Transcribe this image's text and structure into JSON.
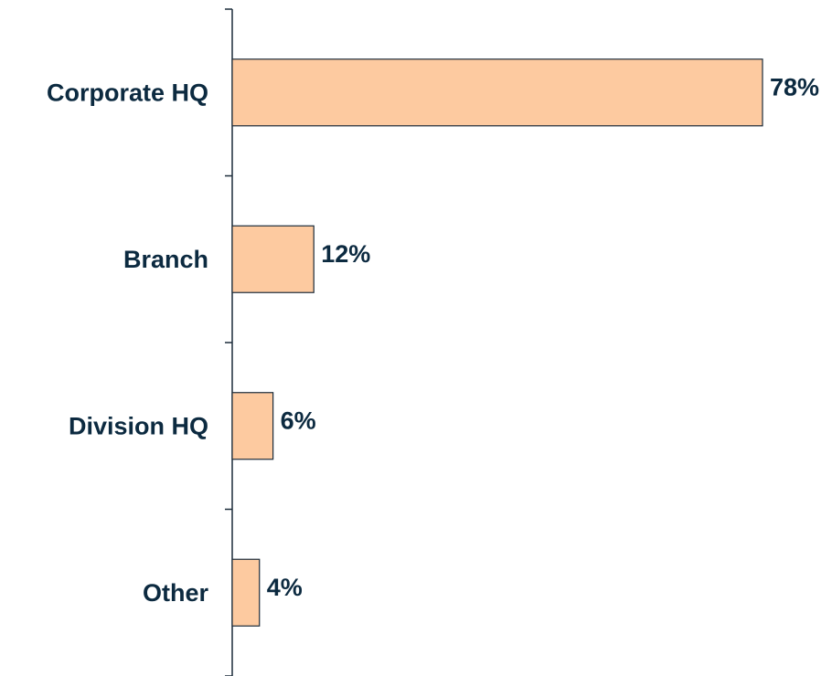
{
  "chart_data": {
    "type": "bar",
    "orientation": "horizontal",
    "categories": [
      "Corporate HQ",
      "Branch",
      "Division HQ",
      "Other"
    ],
    "values": [
      78,
      12,
      6,
      4
    ],
    "value_labels": [
      "78%",
      "12%",
      "6%",
      "4%"
    ],
    "color": "#fdcaa0"
  }
}
